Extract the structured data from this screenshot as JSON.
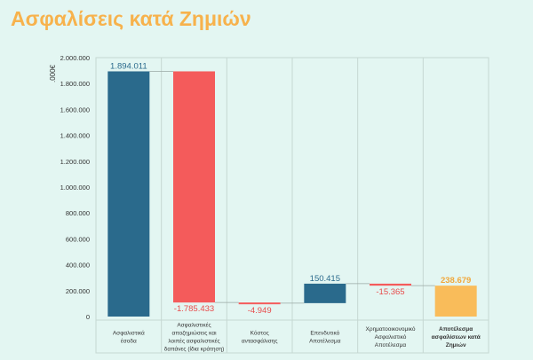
{
  "title": "Ασφαλίσεις κατά Ζημιών",
  "chart_data": {
    "type": "waterfall",
    "title": "Ασφαλίσεις κατά Ζημιών",
    "ylabel": ".000€",
    "ylim": [
      0,
      2000000
    ],
    "y_ticks": [
      "0",
      "200.000",
      "400.000",
      "600.000",
      "800.000",
      "1.000.000",
      "1.200.000",
      "1.400.000",
      "1.600.000",
      "1.800.000",
      "2.000.000"
    ],
    "grid": true,
    "categories": [
      [
        "Ασφαλιστικά",
        "έσοδα"
      ],
      [
        "Ασφαλιστικές",
        "αποζημιώσεις και",
        "λοιπές ασφαλιστικές",
        "δαπάνες (ίδια κράτηση)"
      ],
      [
        "Κόστος",
        "αντασφάλισης"
      ],
      [
        "Επενδυτικό",
        "Αποτέλεσμα"
      ],
      [
        "Χρηματοοικονομικό",
        "Ασφαλιστικό",
        "Αποτέλεσμα"
      ],
      [
        "Αποτέλεσμα",
        "ασφαλίσεων κατά",
        "Ζημιών"
      ]
    ],
    "values": [
      1894011,
      -1785433,
      -4949,
      150415,
      -15365,
      238679
    ],
    "labels": [
      "1.894.011",
      "-1.785.433",
      "-4.949",
      "150.415",
      "-15.365",
      "238.679"
    ],
    "kinds": [
      "increase",
      "decrease",
      "decrease",
      "increase",
      "decrease",
      "total"
    ],
    "colors": {
      "increase": "#2a6a8c",
      "decrease": "#f45b5b",
      "total": "#f9bc5a",
      "label_increase": "#2a6a8c",
      "label_decrease": "#e84c4c",
      "label_total": "#f0a83c"
    }
  }
}
